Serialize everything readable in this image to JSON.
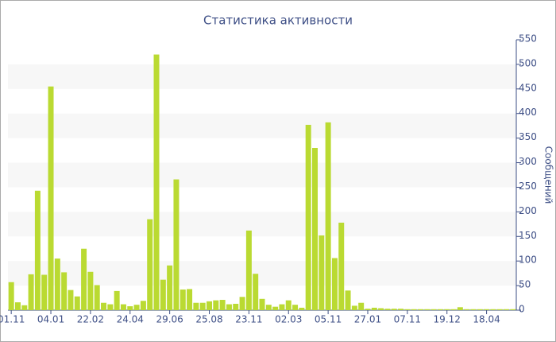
{
  "chart_data": {
    "type": "bar",
    "title": "Статистика активности",
    "y_label": "Сообщений",
    "categories": [
      "01.11",
      null,
      null,
      null,
      null,
      null,
      "04.01",
      null,
      null,
      null,
      null,
      null,
      "22.02",
      null,
      null,
      null,
      null,
      null,
      "24.04",
      null,
      null,
      null,
      null,
      null,
      "29.06",
      null,
      null,
      null,
      null,
      null,
      "25.08",
      null,
      null,
      null,
      null,
      null,
      "23.11",
      null,
      null,
      null,
      null,
      null,
      "02.03",
      null,
      null,
      null,
      null,
      null,
      "05.11",
      null,
      null,
      null,
      null,
      null,
      "27.01",
      null,
      null,
      null,
      null,
      null,
      "07.11",
      null,
      null,
      null,
      null,
      null,
      "19.12",
      null,
      null,
      null,
      null,
      null,
      "18.04",
      null,
      null,
      null,
      null
    ],
    "values": [
      57,
      16,
      10,
      73,
      243,
      72,
      455,
      105,
      77,
      41,
      28,
      125,
      78,
      51,
      15,
      12,
      39,
      12,
      8,
      11,
      19,
      185,
      520,
      62,
      91,
      266,
      42,
      43,
      15,
      15,
      18,
      20,
      21,
      12,
      13,
      27,
      162,
      74,
      23,
      11,
      7,
      12,
      20,
      11,
      5,
      377,
      330,
      152,
      382,
      106,
      178,
      40,
      9,
      15,
      3,
      5,
      4,
      3,
      3,
      3,
      2,
      2,
      2,
      2,
      2,
      2,
      2,
      2,
      6,
      2,
      2,
      2,
      2,
      2,
      2,
      2,
      2
    ],
    "color": "#bada32",
    "ylim": [
      0,
      550
    ],
    "yticks": [
      0,
      50,
      100,
      150,
      200,
      250,
      300,
      350,
      400,
      450,
      500,
      550
    ],
    "grid": true
  }
}
